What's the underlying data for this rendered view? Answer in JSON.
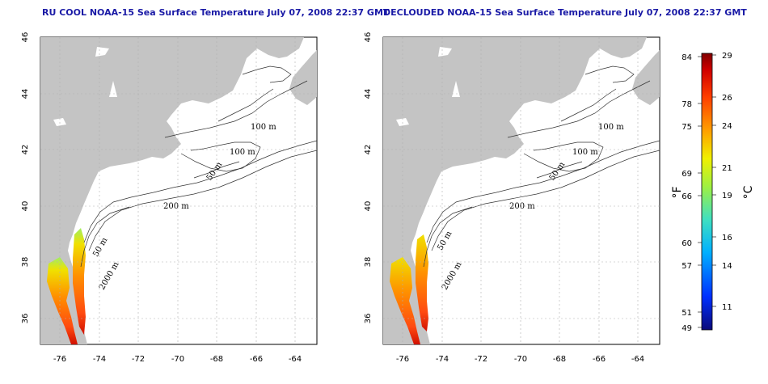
{
  "panels": [
    {
      "title": "RU COOL NOAA-15 Sea Surface Temperature July 07, 2008 22:37 GMT",
      "contour_labels": [
        "100 m",
        "100 m",
        "50 m",
        "200 m",
        "50 m",
        "2000 m"
      ]
    },
    {
      "title": "DECLOUDED NOAA-15 Sea Surface Temperature July 07, 2008 22:37 GMT",
      "contour_labels": [
        "100 m",
        "100 m",
        "50 m",
        "200 m",
        "50 m",
        "2000 m"
      ]
    }
  ],
  "axes": {
    "lon_ticks": [
      "-76",
      "-74",
      "-72",
      "-70",
      "-68",
      "-66",
      "-64"
    ],
    "lat_ticks": [
      "46",
      "44",
      "42",
      "40",
      "38",
      "36"
    ]
  },
  "colorbar": {
    "fahrenheit_ticks": [
      "84",
      "78",
      "75",
      "69",
      "66",
      "60",
      "57",
      "51",
      "49"
    ],
    "celsius_ticks": [
      "29",
      "26",
      "24",
      "21",
      "19",
      "16",
      "14",
      "11"
    ],
    "fahrenheit_label": "°F",
    "celsius_label": "°C",
    "colors": [
      "#0a0a7a",
      "#0030ff",
      "#00b0ff",
      "#40e0c0",
      "#a0f040",
      "#f0f000",
      "#ffa000",
      "#ff4000",
      "#d00000",
      "#800000"
    ]
  },
  "colors": {
    "land": "#c4c4c4",
    "ocean": "#ffffff",
    "title": "#1a1aa6",
    "grid": "#b0b0b0"
  }
}
